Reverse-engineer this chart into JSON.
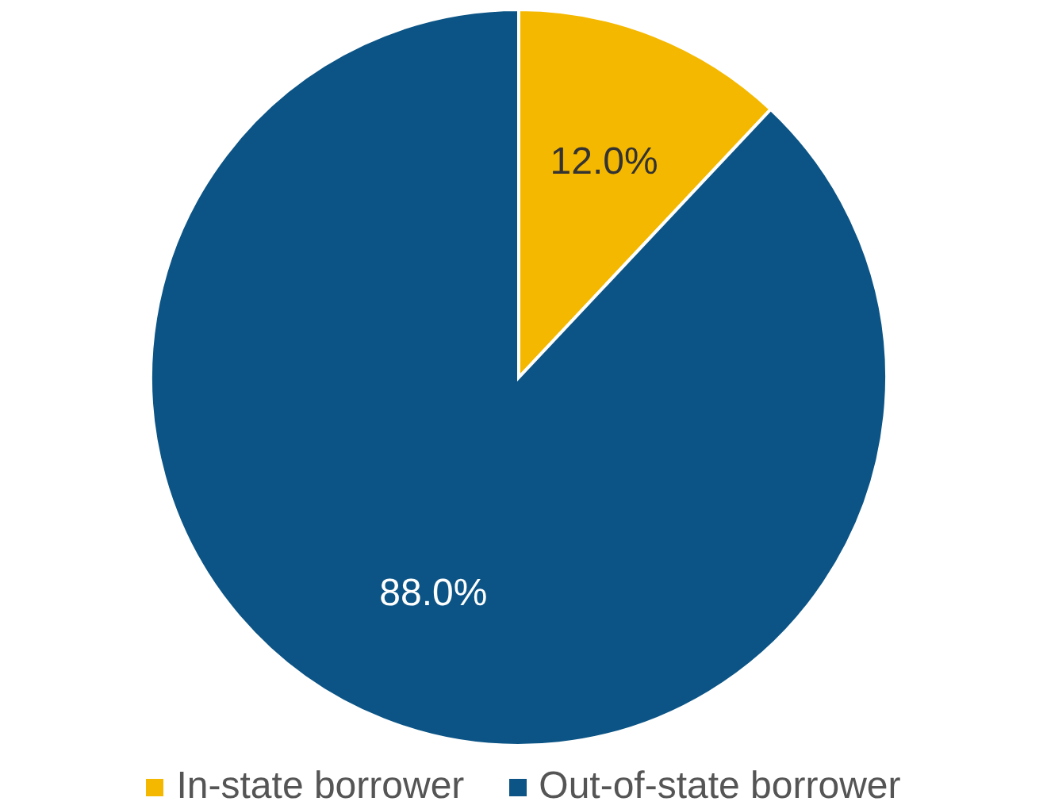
{
  "chart_data": {
    "type": "pie",
    "categories": [
      "In-state borrower",
      "Out-of-state borrower"
    ],
    "values": [
      12,
      88
    ],
    "colors": [
      "#f5b800",
      "#0b5485"
    ],
    "value_labels": [
      "12.0%",
      "88.0%"
    ],
    "legend": "bottom"
  }
}
